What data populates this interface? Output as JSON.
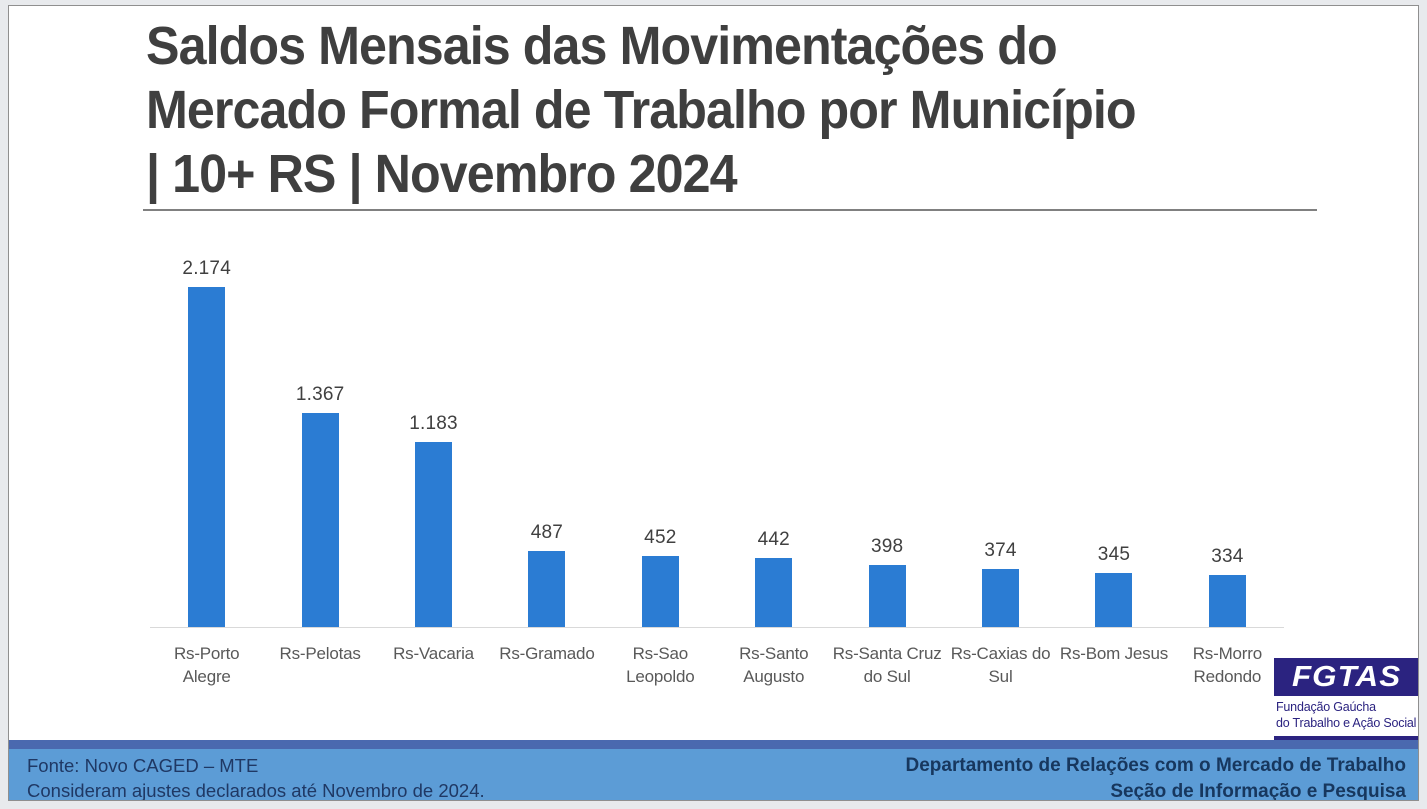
{
  "slide": {
    "title_lines": [
      "Saldos Mensais das Movimentações do",
      "Mercado Formal de Trabalho por Município",
      "| 10+ RS | Novembro 2024"
    ]
  },
  "chart_data": {
    "type": "bar",
    "title": "Saldos Mensais das Movimentações do Mercado Formal de Trabalho por Município | 10+ RS | Novembro 2024",
    "categories": [
      "Rs-Porto\nAlegre",
      "Rs-Pelotas",
      "Rs-Vacaria",
      "Rs-Gramado",
      "Rs-Sao\nLeopoldo",
      "Rs-Santo\nAugusto",
      "Rs-Santa Cruz\ndo Sul",
      "Rs-Caxias do\nSul",
      "Rs-Bom Jesus",
      "Rs-Morro\nRedondo"
    ],
    "values": [
      2174,
      1367,
      1183,
      487,
      452,
      442,
      398,
      374,
      345,
      334
    ],
    "value_labels": [
      "2.174",
      "1.367",
      "1.183",
      "487",
      "452",
      "442",
      "398",
      "374",
      "345",
      "334"
    ],
    "xlabel": "",
    "ylabel": "",
    "ylim": [
      0,
      2174
    ],
    "gridlines": false,
    "legend": "none",
    "data_labels": true,
    "bar_color": "#2B7CD3",
    "axis_line_color": "#D9D9D9"
  },
  "logo": {
    "acronym": "FGTAS",
    "subtitle_lines": [
      "Fundação Gaúcha",
      "do Trabalho e Ação Social"
    ],
    "color": "#2B2380"
  },
  "footer": {
    "source_line1": "Fonte: Novo CAGED – MTE",
    "source_line2": "Consideram ajustes declarados até Novembro de 2024.",
    "dept_line1": "Departamento de Relações com o Mercado de Trabalho",
    "dept_line2": "Seção de Informação e Pesquisa"
  },
  "colors": {
    "bar": "#2B7CD3",
    "title_text": "#3F3F3F",
    "category_text": "#595959",
    "logo_navy": "#2B2380",
    "footer_strip": "#4A69AF",
    "footer_band": "#5C9CD6",
    "footer_text": "#1F3864",
    "page_margin": "#E8EAED"
  }
}
